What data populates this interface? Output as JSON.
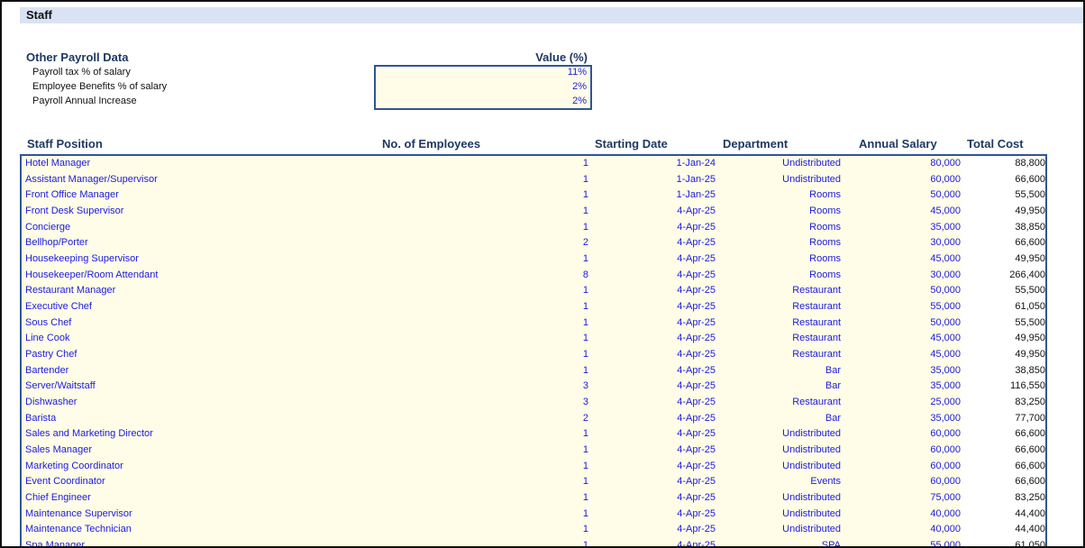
{
  "header": {
    "title": "Staff"
  },
  "payroll": {
    "title": "Other Payroll Data",
    "value_header": "Value (%)",
    "rows": [
      [
        "Payroll tax % of salary",
        "11%"
      ],
      [
        "Employee Benefits % of salary",
        "2%"
      ],
      [
        "Payroll Annual Increase",
        "2%"
      ]
    ]
  },
  "table": {
    "columns": [
      "Staff Position",
      "No. of Employees",
      "Starting Date",
      "Department",
      "Annual Salary",
      "Total Cost"
    ],
    "rows": [
      [
        "Hotel Manager",
        "1",
        "1-Jan-24",
        "Undistributed",
        "80,000",
        "88,800"
      ],
      [
        "Assistant Manager/Supervisor",
        "1",
        "1-Jan-25",
        "Undistributed",
        "60,000",
        "66,600"
      ],
      [
        "Front Office Manager",
        "1",
        "1-Jan-25",
        "Rooms",
        "50,000",
        "55,500"
      ],
      [
        "Front Desk Supervisor",
        "1",
        "4-Apr-25",
        "Rooms",
        "45,000",
        "49,950"
      ],
      [
        "Concierge",
        "1",
        "4-Apr-25",
        "Rooms",
        "35,000",
        "38,850"
      ],
      [
        "Bellhop/Porter",
        "2",
        "4-Apr-25",
        "Rooms",
        "30,000",
        "66,600"
      ],
      [
        "Housekeeping Supervisor",
        "1",
        "4-Apr-25",
        "Rooms",
        "45,000",
        "49,950"
      ],
      [
        "Housekeeper/Room Attendant",
        "8",
        "4-Apr-25",
        "Rooms",
        "30,000",
        "266,400"
      ],
      [
        "Restaurant Manager",
        "1",
        "4-Apr-25",
        "Restaurant",
        "50,000",
        "55,500"
      ],
      [
        "Executive Chef",
        "1",
        "4-Apr-25",
        "Restaurant",
        "55,000",
        "61,050"
      ],
      [
        "Sous Chef",
        "1",
        "4-Apr-25",
        "Restaurant",
        "50,000",
        "55,500"
      ],
      [
        "Line Cook",
        "1",
        "4-Apr-25",
        "Restaurant",
        "45,000",
        "49,950"
      ],
      [
        "Pastry Chef",
        "1",
        "4-Apr-25",
        "Restaurant",
        "45,000",
        "49,950"
      ],
      [
        "Bartender",
        "1",
        "4-Apr-25",
        "Bar",
        "35,000",
        "38,850"
      ],
      [
        "Server/Waitstaff",
        "3",
        "4-Apr-25",
        "Bar",
        "35,000",
        "116,550"
      ],
      [
        "Dishwasher",
        "3",
        "4-Apr-25",
        "Restaurant",
        "25,000",
        "83,250"
      ],
      [
        "Barista",
        "2",
        "4-Apr-25",
        "Bar",
        "35,000",
        "77,700"
      ],
      [
        "Sales and Marketing Director",
        "1",
        "4-Apr-25",
        "Undistributed",
        "60,000",
        "66,600"
      ],
      [
        "Sales Manager",
        "1",
        "4-Apr-25",
        "Undistributed",
        "60,000",
        "66,600"
      ],
      [
        "Marketing Coordinator",
        "1",
        "4-Apr-25",
        "Undistributed",
        "60,000",
        "66,600"
      ],
      [
        "Event Coordinator",
        "1",
        "4-Apr-25",
        "Events",
        "60,000",
        "66,600"
      ],
      [
        "Chief Engineer",
        "1",
        "4-Apr-25",
        "Undistributed",
        "75,000",
        "83,250"
      ],
      [
        "Maintenance Supervisor",
        "1",
        "4-Apr-25",
        "Undistributed",
        "40,000",
        "44,400"
      ],
      [
        "Maintenance Technician",
        "1",
        "4-Apr-25",
        "Undistributed",
        "40,000",
        "44,400"
      ],
      [
        "Spa Manager",
        "1",
        "4-Apr-25",
        "SPA",
        "55,000",
        "61,050"
      ]
    ]
  }
}
